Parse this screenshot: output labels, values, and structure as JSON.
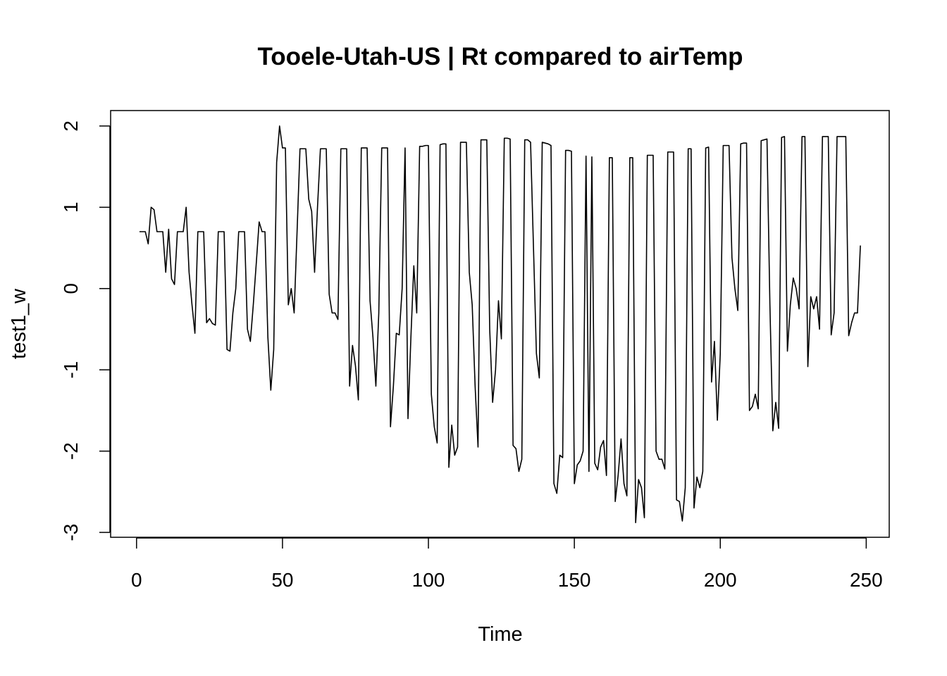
{
  "chart_data": {
    "type": "line",
    "title": "Tooele-Utah-US | Rt compared to airTemp",
    "x_label": "Time",
    "y_label": "test1_w",
    "color": "#000000",
    "x": [
      1,
      2,
      3,
      4,
      5,
      6,
      7,
      8,
      9,
      10,
      11,
      12,
      13,
      14,
      15,
      16,
      17,
      18,
      19,
      20,
      21,
      22,
      23,
      24,
      25,
      26,
      27,
      28,
      29,
      30,
      31,
      32,
      33,
      34,
      35,
      36,
      37,
      38,
      39,
      40,
      41,
      42,
      43,
      44,
      45,
      46,
      47,
      48,
      49,
      50,
      51,
      52,
      53,
      54,
      55,
      56,
      57,
      58,
      59,
      60,
      61,
      62,
      63,
      64,
      65,
      66,
      67,
      68,
      69,
      70,
      71,
      72,
      73,
      74,
      75,
      76,
      77,
      78,
      79,
      80,
      81,
      82,
      83,
      84,
      85,
      86,
      87,
      88,
      89,
      90,
      91,
      92,
      93,
      94,
      95,
      96,
      97,
      98,
      99,
      100,
      101,
      102,
      103,
      104,
      105,
      106,
      107,
      108,
      109,
      110,
      111,
      112,
      113,
      114,
      115,
      116,
      117,
      118,
      119,
      120,
      121,
      122,
      123,
      124,
      125,
      126,
      127,
      128,
      129,
      130,
      131,
      132,
      133,
      134,
      135,
      136,
      137,
      138,
      139,
      140,
      141,
      142,
      143,
      144,
      145,
      146,
      147,
      148,
      149,
      150,
      151,
      152,
      153,
      154,
      155,
      156,
      157,
      158,
      159,
      160,
      161,
      162,
      163,
      164,
      165,
      166,
      167,
      168,
      169,
      170,
      171,
      172,
      173,
      174,
      175,
      176,
      177,
      178,
      179,
      180,
      181,
      182,
      183,
      184,
      185,
      186,
      187,
      188,
      189,
      190,
      191,
      192,
      193,
      194,
      195,
      196,
      197,
      198,
      199,
      200,
      201,
      202,
      203,
      204,
      205,
      206,
      207,
      208,
      209,
      210,
      211,
      212,
      213,
      214,
      215,
      216,
      217,
      218,
      219,
      220,
      221,
      222,
      223,
      224,
      225,
      226,
      227,
      228,
      229,
      230,
      231,
      232,
      233,
      234,
      235,
      236,
      237,
      238,
      239,
      240,
      241,
      242,
      243,
      244,
      245,
      246,
      247,
      248
    ],
    "values": [
      0.7,
      0.7,
      0.7,
      0.55,
      1.0,
      0.97,
      0.7,
      0.7,
      0.7,
      0.2,
      0.73,
      0.12,
      0.05,
      0.7,
      0.7,
      0.7,
      1.0,
      0.2,
      -0.2,
      -0.55,
      0.7,
      0.7,
      0.7,
      -0.42,
      -0.37,
      -0.43,
      -0.45,
      0.7,
      0.7,
      0.7,
      -0.75,
      -0.77,
      -0.3,
      0.0,
      0.7,
      0.7,
      0.7,
      -0.5,
      -0.65,
      -0.2,
      0.3,
      0.82,
      0.7,
      0.7,
      -0.6,
      -1.25,
      -0.75,
      1.55,
      2.0,
      1.73,
      1.73,
      -0.2,
      0.0,
      -0.3,
      0.7,
      1.72,
      1.72,
      1.72,
      1.1,
      0.95,
      0.2,
      1.0,
      1.72,
      1.72,
      1.72,
      -0.07,
      -0.3,
      -0.3,
      -0.38,
      1.72,
      1.72,
      1.72,
      -1.2,
      -0.7,
      -0.95,
      -1.37,
      1.73,
      1.73,
      1.73,
      -0.15,
      -0.6,
      -1.2,
      -0.3,
      1.73,
      1.73,
      1.73,
      -1.7,
      -1.2,
      -0.55,
      -0.57,
      0.0,
      1.73,
      -1.6,
      -0.6,
      0.28,
      -0.3,
      1.75,
      1.75,
      1.76,
      1.76,
      -1.3,
      -1.7,
      -1.9,
      1.77,
      1.78,
      1.78,
      -2.2,
      -1.68,
      -2.05,
      -1.95,
      1.8,
      1.8,
      1.8,
      0.2,
      -0.2,
      -1.2,
      -1.95,
      1.83,
      1.83,
      1.83,
      -0.5,
      -1.4,
      -1.0,
      -0.15,
      -0.62,
      1.85,
      1.85,
      1.84,
      -1.93,
      -1.97,
      -2.25,
      -2.1,
      1.83,
      1.83,
      1.8,
      0.5,
      -0.8,
      -1.1,
      1.8,
      1.79,
      1.78,
      1.76,
      -2.4,
      -2.52,
      -2.05,
      -2.08,
      1.7,
      1.7,
      1.69,
      -2.4,
      -2.17,
      -2.12,
      -2.0,
      1.63,
      -2.25,
      1.62,
      -2.15,
      -2.23,
      -1.95,
      -1.87,
      -2.3,
      1.61,
      1.61,
      -2.62,
      -2.3,
      -1.85,
      -2.4,
      -2.55,
      1.61,
      1.61,
      -2.88,
      -2.35,
      -2.45,
      -2.82,
      1.64,
      1.64,
      1.64,
      -2.0,
      -2.1,
      -2.1,
      -2.22,
      1.68,
      1.68,
      1.68,
      -2.6,
      -2.62,
      -2.86,
      -2.45,
      1.72,
      1.72,
      -2.7,
      -2.32,
      -2.45,
      -2.25,
      1.73,
      1.74,
      -1.15,
      -0.65,
      -1.62,
      -0.8,
      1.76,
      1.76,
      1.76,
      0.38,
      0.0,
      -0.27,
      1.78,
      1.79,
      1.79,
      -1.5,
      -1.45,
      -1.3,
      -1.48,
      1.82,
      1.83,
      1.84,
      -0.2,
      -1.75,
      -1.4,
      -1.72,
      1.86,
      1.87,
      -0.77,
      -0.2,
      0.13,
      0.0,
      -0.25,
      1.87,
      1.87,
      -0.96,
      -0.1,
      -0.25,
      -0.1,
      -0.5,
      1.87,
      1.87,
      1.87,
      -0.57,
      -0.3,
      1.87,
      1.87,
      1.87,
      1.87,
      -0.58,
      -0.42,
      -0.3,
      -0.3,
      0.53
    ],
    "xlim": [
      -8.88,
      257.88
    ],
    "ylim": [
      -3.06,
      2.19
    ],
    "xticks": [
      0,
      50,
      100,
      150,
      200,
      250
    ],
    "yticks": [
      -3,
      -2,
      -1,
      0,
      1,
      2
    ]
  }
}
